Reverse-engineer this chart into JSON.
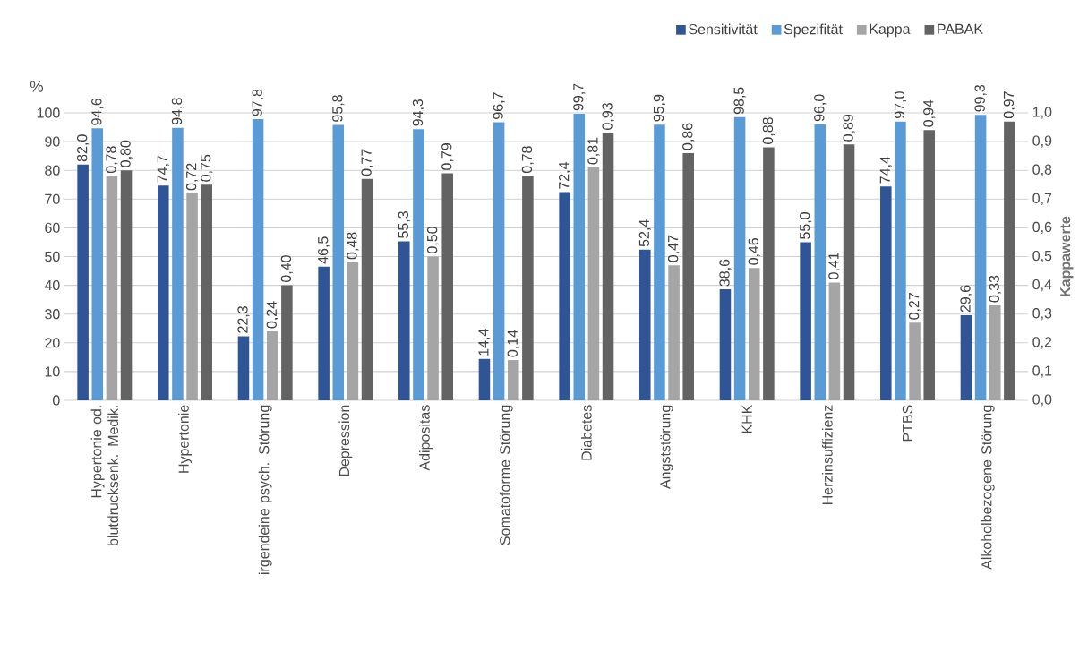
{
  "chart_data": {
    "type": "bar",
    "categories": [
      "Hypertonie od. blutdrucksenk. Medik.",
      "Hypertonie",
      "irgendeine psych. Störung",
      "Depression",
      "Adipositas",
      "Somatoforme Störung",
      "Diabetes",
      "Angststörung",
      "KHK",
      "Herzinsuffizienz",
      "PTBS",
      "Alkoholbezogene Störung"
    ],
    "series": [
      {
        "name": "Sensitivität",
        "color": "#2f5597",
        "values": [
          82.0,
          74.7,
          22.3,
          46.5,
          55.3,
          14.4,
          72.4,
          52.4,
          38.6,
          55.0,
          74.4,
          29.6
        ],
        "value_labels": [
          "82,0",
          "74,7",
          "22,3",
          "46,5",
          "55,3",
          "14,4",
          "72,4",
          "52,4",
          "38,6",
          "55,0",
          "74,4",
          "29,6"
        ]
      },
      {
        "name": "Spezifität",
        "color": "#5b9bd5",
        "values": [
          94.6,
          94.8,
          97.8,
          95.8,
          94.3,
          96.7,
          99.7,
          95.9,
          98.5,
          96.0,
          97.0,
          99.3
        ],
        "value_labels": [
          "94,6",
          "94,8",
          "97,8",
          "95,8",
          "94,3",
          "96,7",
          "99,7",
          "95,9",
          "98,5",
          "96,0",
          "97,0",
          "99,3"
        ]
      },
      {
        "name": "Kappa",
        "color": "#a5a5a5",
        "axis": "y2",
        "values": [
          0.78,
          0.72,
          0.24,
          0.48,
          0.5,
          0.14,
          0.81,
          0.47,
          0.46,
          0.41,
          0.27,
          0.33
        ],
        "value_labels": [
          "0,78",
          "0,72",
          "0,24",
          "0,48",
          "0,50",
          "0,14",
          "0,81",
          "0,47",
          "0,46",
          "0,41",
          "0,27",
          "0,33"
        ]
      },
      {
        "name": "PABAK",
        "color": "#636363",
        "axis": "y2",
        "values": [
          0.8,
          0.75,
          0.4,
          0.77,
          0.79,
          0.78,
          0.93,
          0.86,
          0.88,
          0.89,
          0.94,
          0.97
        ],
        "value_labels": [
          "0,80",
          "0,75",
          "0,40",
          "0,77",
          "0,79",
          "0,78",
          "0,93",
          "0,86",
          "0,88",
          "0,89",
          "0,94",
          "0,97"
        ]
      }
    ],
    "ylabel": "%",
    "y2label": "Kappawerte",
    "ylim": [
      0,
      100
    ],
    "yticks": [
      0,
      10,
      20,
      30,
      40,
      50,
      60,
      70,
      80,
      90,
      100
    ],
    "y2lim": [
      0,
      1
    ],
    "y2ticks": [
      {
        "value": 0,
        "label": "0,0"
      },
      {
        "value": 0.1,
        "label": "0,1"
      },
      {
        "value": 0.2,
        "label": "0,2"
      },
      {
        "value": 0.3,
        "label": "0,3"
      },
      {
        "value": 0.4,
        "label": "0,4"
      },
      {
        "value": 0.5,
        "label": "0,5"
      },
      {
        "value": 0.6,
        "label": "0,6"
      },
      {
        "value": 0.7,
        "label": "0,7"
      },
      {
        "value": 0.8,
        "label": "0,8"
      },
      {
        "value": 0.9,
        "label": "0,9"
      },
      {
        "value": 1,
        "label": "1,0"
      }
    ],
    "grid": "y",
    "legend": "top right"
  }
}
